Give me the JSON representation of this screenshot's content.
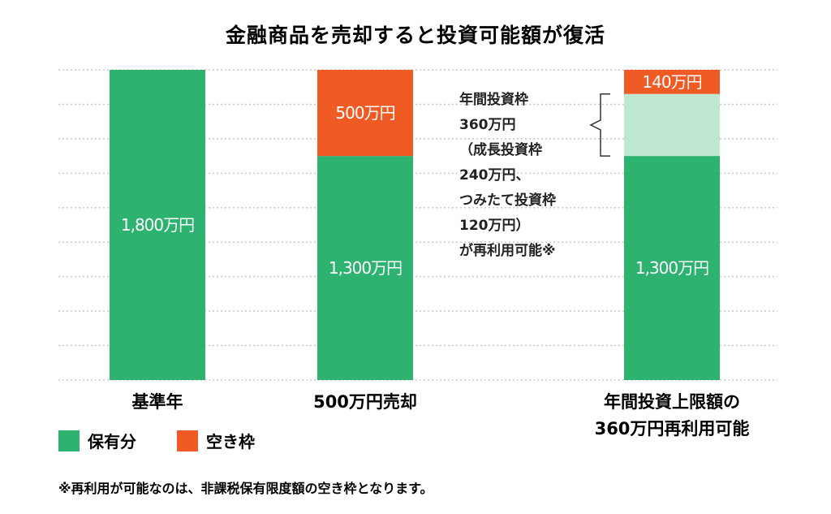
{
  "chart_data": {
    "type": "bar",
    "stacked": true,
    "title": "金融商品を売却すると投資可能額が復活",
    "categories": [
      [
        "基準年"
      ],
      [
        "500万円売却"
      ],
      [
        "年間投資上限額の",
        "360万円再利用可能"
      ]
    ],
    "ylim": [
      0,
      1800
    ],
    "grid": true,
    "series": [
      {
        "name": "保有分",
        "color": "#2db26f",
        "values": [
          1800,
          1300,
          1300
        ],
        "labels": [
          "1,800万円",
          "1,300万円",
          "1,300万円"
        ]
      },
      {
        "name": "",
        "color": "#bfe8d2",
        "values": [
          0,
          0,
          360
        ],
        "labels": [
          "",
          "",
          ""
        ]
      },
      {
        "name": "空き枠",
        "color": "#f05a24",
        "values": [
          0,
          500,
          140
        ],
        "labels": [
          "",
          "500万円",
          "140万円"
        ]
      }
    ],
    "annotation": {
      "lines": [
        "年間投資枠",
        "360万円",
        "（成長投資枠",
        "240万円、",
        "つみたて投資枠",
        "120万円）",
        "が再利用可能※"
      ]
    },
    "legend": {
      "position": "bottom-left"
    },
    "footnote": "※再利用が可能なのは、非課税保有限度額の空き枠となります。"
  }
}
